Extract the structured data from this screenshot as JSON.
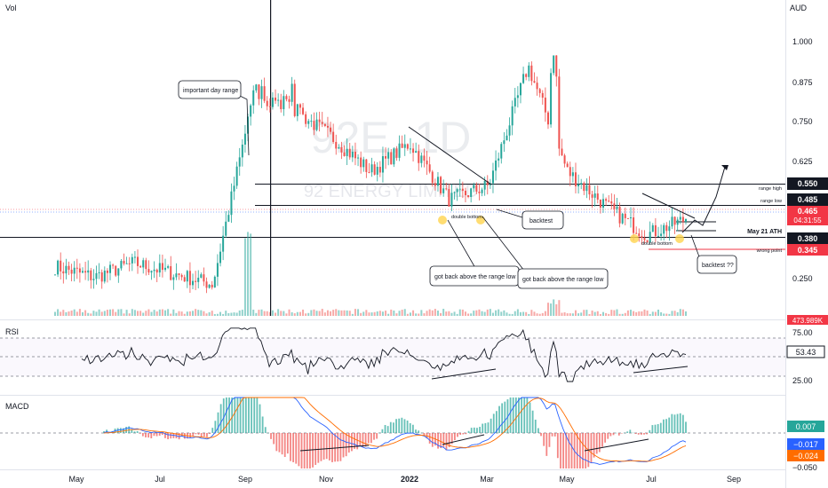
{
  "symbol_watermark": "92E, 1D",
  "name_watermark": "92 ENERGY LIMITED",
  "labels": {
    "vol": "Vol",
    "currency": "AUD",
    "rsi": "RSI",
    "macd": "MACD"
  },
  "axis": {
    "price_ticks": [
      "1.000",
      "0.875",
      "0.750",
      "0.625",
      "0.250"
    ],
    "rsi_ticks": [
      "75.00",
      "25.00"
    ],
    "macd_ticks": [
      "−0.050"
    ],
    "time_ticks": [
      "May",
      "Jul",
      "Sep",
      "Nov",
      "2022",
      "Mar",
      "May",
      "Jul",
      "Sep"
    ]
  },
  "price_badges": [
    {
      "text": "0.550",
      "style": "dark"
    },
    {
      "text": "0.485",
      "style": "dark"
    },
    {
      "text": "0.465",
      "style": "red"
    },
    {
      "text": "04:31:55",
      "style": "red"
    },
    {
      "text": "0.380",
      "style": "dark"
    },
    {
      "text": "0.345",
      "style": "red"
    },
    {
      "text": "473.989K",
      "style": "red"
    }
  ],
  "indicator_badges": [
    {
      "text": "53.43",
      "style": "outline"
    },
    {
      "text": "0.007",
      "style": "teal"
    },
    {
      "text": "−0.017",
      "style": "blue"
    },
    {
      "text": "−0.024",
      "style": "orange"
    }
  ],
  "annotations": {
    "important_day_range": "important day range",
    "double_bottom_1": "double bottom",
    "backtest": "backtest",
    "got_back_1": "got back above the range low",
    "got_back_2": "got back above the range low",
    "double_bottom_2": "double bottom",
    "backtest_q": "backtest ??",
    "range_high": "range high",
    "range_low": "range low",
    "may21_ath": "May 21 ATH",
    "wrong_point": "wrong point"
  },
  "colors": {
    "up": "#26a69a",
    "down": "#ef5350",
    "rsi_line": "#131722",
    "macd_line": "#2962ff",
    "signal_line": "#ff6d00",
    "dark_badge": "#131722",
    "red_badge": "#f23645"
  },
  "chart_data": {
    "type": "line",
    "subtype": "candlestick",
    "x": [
      "2021-04",
      "2021-05",
      "2021-06",
      "2021-07",
      "2021-08",
      "2021-09",
      "2021-10",
      "2021-11",
      "2021-12",
      "2022-01",
      "2022-02",
      "2022-03",
      "2022-04",
      "2022-05",
      "2022-06",
      "2022-07",
      "2022-08"
    ],
    "series": [
      {
        "values": [
          0.33,
          0.3,
          0.34,
          0.31,
          0.28,
          0.8,
          0.78,
          0.7,
          0.6,
          0.68,
          0.52,
          0.56,
          0.9,
          0.6,
          0.5,
          0.42,
          0.465
        ]
      }
    ],
    "ylim": [
      0.2,
      1.08
    ],
    "levels": [
      0.55,
      0.485,
      0.38,
      0.345
    ],
    "rsi_last": 53.43,
    "macd_last": {
      "hist": 0.007,
      "macd": -0.017,
      "signal": -0.024
    },
    "volume_last": "473.989K"
  }
}
